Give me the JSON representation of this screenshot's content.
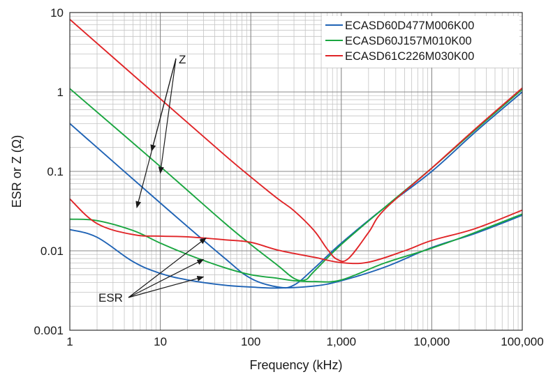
{
  "chart_data": {
    "type": "line",
    "title": "",
    "xlabel": "Frequency (kHz)",
    "ylabel": "ESR or Z (Ω)",
    "xscale": "log",
    "yscale": "log",
    "xlim": [
      1,
      100000
    ],
    "ylim": [
      0.001,
      10
    ],
    "grid": true,
    "legend_position": "top-right",
    "x_ticks": [
      {
        "value": 1,
        "label": "1"
      },
      {
        "value": 10,
        "label": "10"
      },
      {
        "value": 100,
        "label": "100"
      },
      {
        "value": 1000,
        "label": "1,000"
      },
      {
        "value": 10000,
        "label": "10,000"
      },
      {
        "value": 100000,
        "label": "100,000"
      }
    ],
    "y_ticks": [
      {
        "value": 0.001,
        "label": "0.001"
      },
      {
        "value": 0.01,
        "label": "0.01"
      },
      {
        "value": 0.1,
        "label": "0.1"
      },
      {
        "value": 1,
        "label": "1"
      },
      {
        "value": 10,
        "label": "10"
      }
    ],
    "series": [
      {
        "name": "ECASD60D477M006K00",
        "color": "#1f63b5",
        "z": [
          [
            1,
            0.4
          ],
          [
            10,
            0.04
          ],
          [
            50,
            0.0083
          ],
          [
            100,
            0.0045
          ],
          [
            200,
            0.0035
          ],
          [
            300,
            0.0037
          ],
          [
            500,
            0.006
          ],
          [
            1000,
            0.0125
          ],
          [
            3000,
            0.035
          ],
          [
            10000,
            0.1
          ],
          [
            30000,
            0.31
          ],
          [
            100000,
            1.0
          ]
        ],
        "esr": [
          [
            1,
            0.0185
          ],
          [
            2,
            0.0148
          ],
          [
            5,
            0.0073
          ],
          [
            10,
            0.0052
          ],
          [
            20,
            0.0043
          ],
          [
            50,
            0.0037
          ],
          [
            100,
            0.0035
          ],
          [
            200,
            0.0034
          ],
          [
            500,
            0.0036
          ],
          [
            1000,
            0.0042
          ],
          [
            3000,
            0.0062
          ],
          [
            10000,
            0.011
          ],
          [
            30000,
            0.0165
          ],
          [
            100000,
            0.028
          ]
        ]
      },
      {
        "name": "ECASD60J157M010K00",
        "color": "#1aa640",
        "z": [
          [
            1,
            1.1
          ],
          [
            10,
            0.115
          ],
          [
            50,
            0.023
          ],
          [
            100,
            0.012
          ],
          [
            200,
            0.0065
          ],
          [
            300,
            0.0045
          ],
          [
            400,
            0.0043
          ],
          [
            500,
            0.0055
          ],
          [
            1000,
            0.012
          ],
          [
            3000,
            0.035
          ],
          [
            10000,
            0.11
          ],
          [
            30000,
            0.33
          ],
          [
            100000,
            1.08
          ]
        ],
        "esr": [
          [
            1,
            0.025
          ],
          [
            2,
            0.024
          ],
          [
            5,
            0.018
          ],
          [
            10,
            0.0125
          ],
          [
            20,
            0.009
          ],
          [
            50,
            0.0062
          ],
          [
            100,
            0.005
          ],
          [
            200,
            0.0045
          ],
          [
            300,
            0.0042
          ],
          [
            500,
            0.0041
          ],
          [
            1000,
            0.0043
          ],
          [
            3000,
            0.007
          ],
          [
            10000,
            0.0108
          ],
          [
            30000,
            0.017
          ],
          [
            100000,
            0.029
          ]
        ]
      },
      {
        "name": "ECASD61C226M030K00",
        "color": "#e02427",
        "z": [
          [
            1,
            8.2
          ],
          [
            10,
            0.82
          ],
          [
            50,
            0.165
          ],
          [
            100,
            0.085
          ],
          [
            200,
            0.045
          ],
          [
            300,
            0.032
          ],
          [
            500,
            0.018
          ],
          [
            700,
            0.0105
          ],
          [
            900,
            0.0078
          ],
          [
            1200,
            0.008
          ],
          [
            2000,
            0.017
          ],
          [
            3000,
            0.033
          ],
          [
            10000,
            0.11
          ],
          [
            30000,
            0.34
          ],
          [
            100000,
            1.12
          ]
        ],
        "esr": [
          [
            1,
            0.045
          ],
          [
            2,
            0.022
          ],
          [
            5,
            0.016
          ],
          [
            10,
            0.0153
          ],
          [
            20,
            0.015
          ],
          [
            50,
            0.0138
          ],
          [
            100,
            0.0128
          ],
          [
            200,
            0.0102
          ],
          [
            500,
            0.0083
          ],
          [
            1000,
            0.0071
          ],
          [
            2000,
            0.0072
          ],
          [
            5000,
            0.01
          ],
          [
            10000,
            0.0135
          ],
          [
            30000,
            0.019
          ],
          [
            100000,
            0.0325
          ]
        ]
      }
    ],
    "annotations": [
      {
        "text": "Z",
        "arrows_to": [
          [
            8,
            0.18
          ],
          [
            5.5,
            0.035
          ],
          [
            10,
            0.095
          ]
        ]
      },
      {
        "text": "ESR",
        "arrows_to": [
          [
            32,
            0.0145
          ],
          [
            30,
            0.0078
          ],
          [
            30,
            0.0047
          ]
        ]
      }
    ]
  }
}
